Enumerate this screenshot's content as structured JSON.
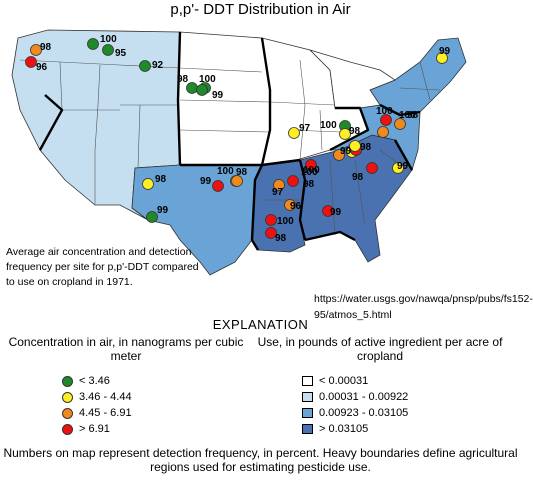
{
  "title": "p,p'- DDT Distribution in Air",
  "caption": "Average air concentration and detection frequency per site for p,p'-DDT compared to use on cropland in 1971.",
  "source_url": "https://water.usgs.gov/nawqa/pnsp/pubs/fs152-95/atmos_5.html",
  "explanation_heading": "EXPLANATION",
  "concentration_legend": {
    "title": "Concentration in air, in nanograms per cubic meter",
    "items": [
      {
        "label": "< 3.46",
        "color": "#1e8a2a"
      },
      {
        "label": "3.46 - 4.44",
        "color": "#ffee22"
      },
      {
        "label": "4.45 - 6.91",
        "color": "#f08a1c"
      },
      {
        "label": "> 6.91",
        "color": "#ee1111"
      }
    ]
  },
  "use_legend": {
    "title": "Use, in pounds of active ingredient per acre of cropland",
    "items": [
      {
        "label": "< 0.00031",
        "color": "#ffffff"
      },
      {
        "label": "0.00031 - 0.00922",
        "color": "#c6dff0"
      },
      {
        "label": "0.00923 - 0.03105",
        "color": "#6aa3d6"
      },
      {
        "label": "> 0.03105",
        "color": "#4a72b0"
      }
    ]
  },
  "footnote": "Numbers on map represent detection frequency, in percent.  Heavy boundaries define agricultural regions used for estimating pesticide use.",
  "sites": [
    {
      "label": "98",
      "class": 2
    },
    {
      "label": "96",
      "class": 3
    },
    {
      "label": "100",
      "class": 0
    },
    {
      "label": "95",
      "class": 0
    },
    {
      "label": "92",
      "class": 0
    },
    {
      "label": "98",
      "class": 0
    },
    {
      "label": "100",
      "class": 0
    },
    {
      "label": "99",
      "class": 0
    },
    {
      "label": "99",
      "class": 1
    },
    {
      "label": "98",
      "class": 1
    },
    {
      "label": "97",
      "class": 1
    },
    {
      "label": "100",
      "class": 0
    },
    {
      "label": "98",
      "class": 1
    },
    {
      "label": "100",
      "class": 2
    },
    {
      "label": "99",
      "class": 1
    },
    {
      "label": "100",
      "class": 3
    },
    {
      "label": "99",
      "class": 1
    },
    {
      "label": "98",
      "class": 1
    },
    {
      "label": "99",
      "class": 0
    },
    {
      "label": "100",
      "class": 2
    },
    {
      "label": "99",
      "class": 3
    },
    {
      "label": "100",
      "class": 3
    },
    {
      "label": "98",
      "class": 3
    },
    {
      "label": "97",
      "class": 2
    },
    {
      "label": "96",
      "class": 2
    },
    {
      "label": "100",
      "class": 3
    },
    {
      "label": "98",
      "class": 3
    },
    {
      "label": "99",
      "class": 3
    },
    {
      "label": "98",
      "class": 3
    },
    {
      "label": "98",
      "class": 3
    },
    {
      "label": "100",
      "class": 2
    },
    {
      "label": "98",
      "class": 2
    },
    {
      "label": "99",
      "class": 1
    }
  ]
}
